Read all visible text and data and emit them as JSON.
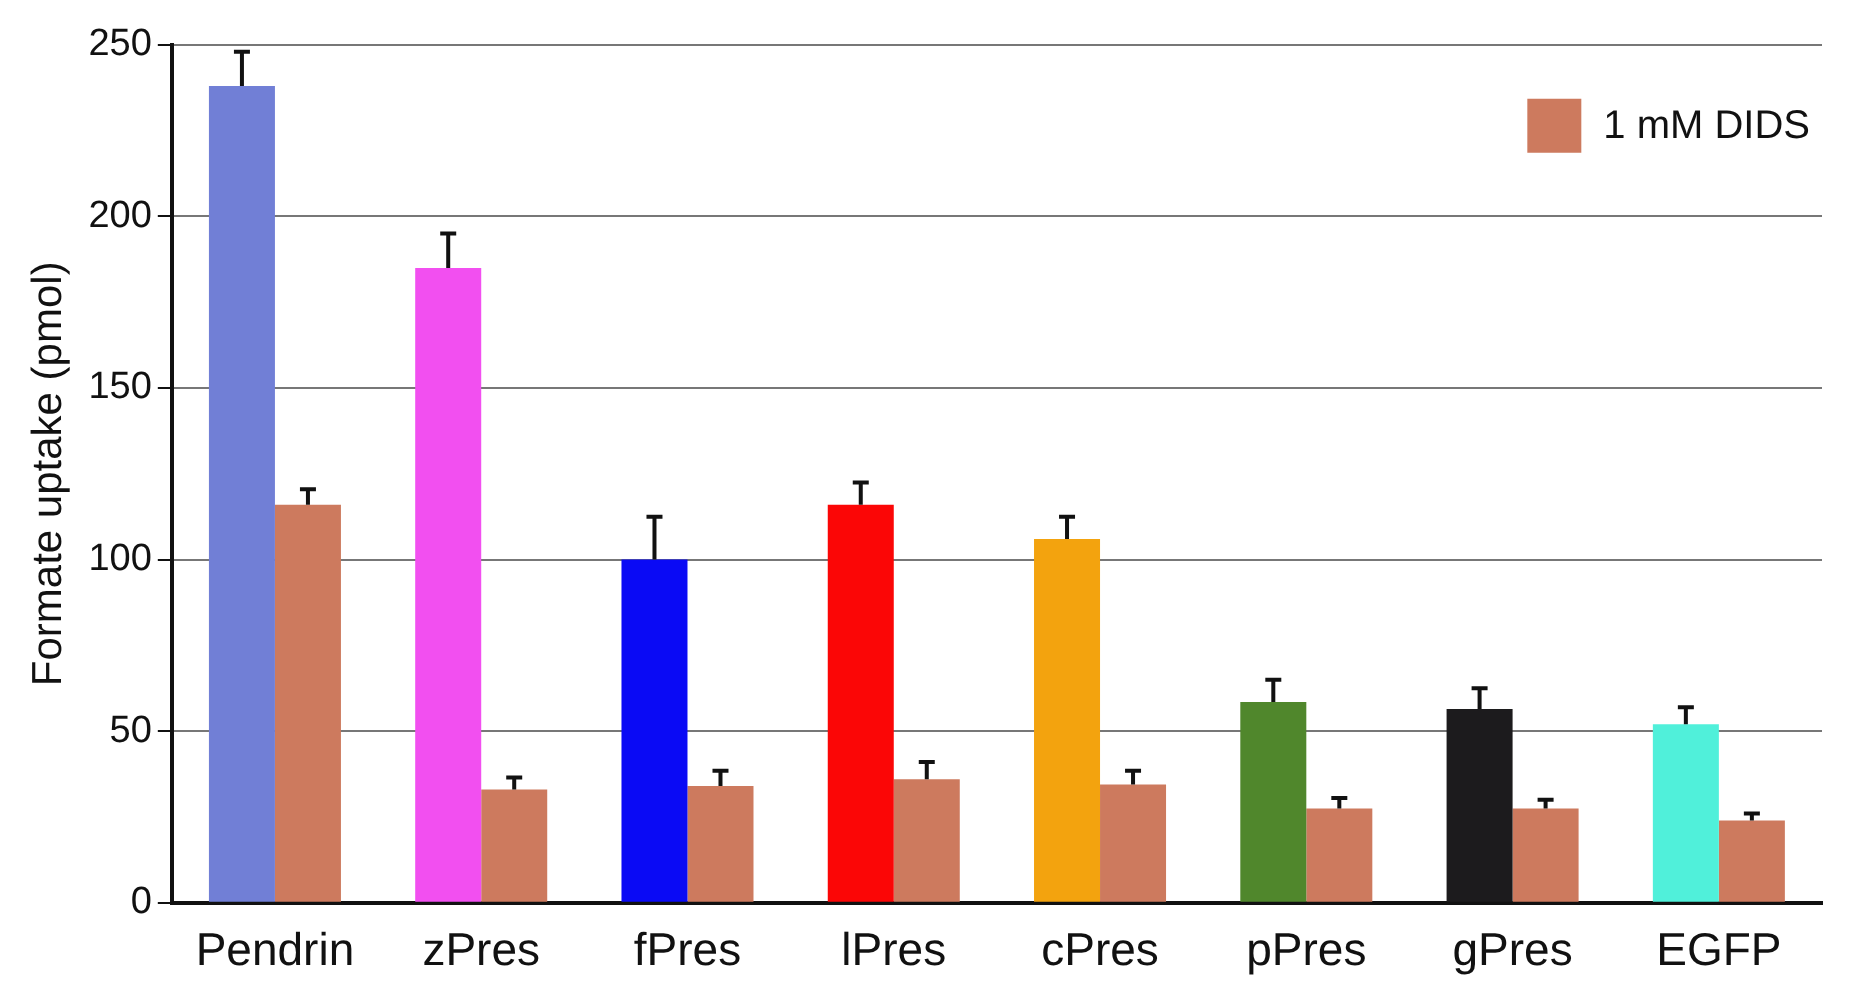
{
  "chart_data": {
    "type": "bar",
    "ylabel": "Formate uptake (pmol)",
    "categories": [
      "Pendrin",
      "zPres",
      "fPres",
      "lPres",
      "cPres",
      "pPres",
      "gPres",
      "EGFP"
    ],
    "series": [
      {
        "colors": [
          "#717fd6",
          "#f24ff0",
          "#0a0af5",
          "#fb0606",
          "#f3a30e",
          "#50872c",
          "#1c1b1d",
          "#50f0da"
        ],
        "values": [
          238,
          185,
          100,
          116,
          106,
          58.5,
          56.5,
          52
        ],
        "errors": [
          [
            238,
            248
          ],
          [
            185,
            195
          ],
          [
            100,
            112.5
          ],
          [
            116,
            122.5
          ],
          [
            106,
            112.5
          ],
          [
            58.5,
            65
          ],
          [
            56.5,
            62.5
          ],
          [
            52,
            57
          ]
        ]
      },
      {
        "name": "1 mM DIDS",
        "color": "#cd7a5e",
        "values": [
          116,
          33,
          34,
          36,
          34.5,
          27.5,
          27.5,
          24
        ],
        "errors": [
          [
            116,
            120.5
          ],
          [
            33,
            36.5
          ],
          [
            34,
            38.5
          ],
          [
            36,
            41
          ],
          [
            34.5,
            38.5
          ],
          [
            27.5,
            30.5
          ],
          [
            27.5,
            30
          ],
          [
            24,
            26
          ]
        ]
      }
    ],
    "ylim": [
      0,
      250
    ],
    "yticks": [
      0,
      50,
      100,
      150,
      200,
      250
    ],
    "grid": "y",
    "legend": "top right"
  }
}
